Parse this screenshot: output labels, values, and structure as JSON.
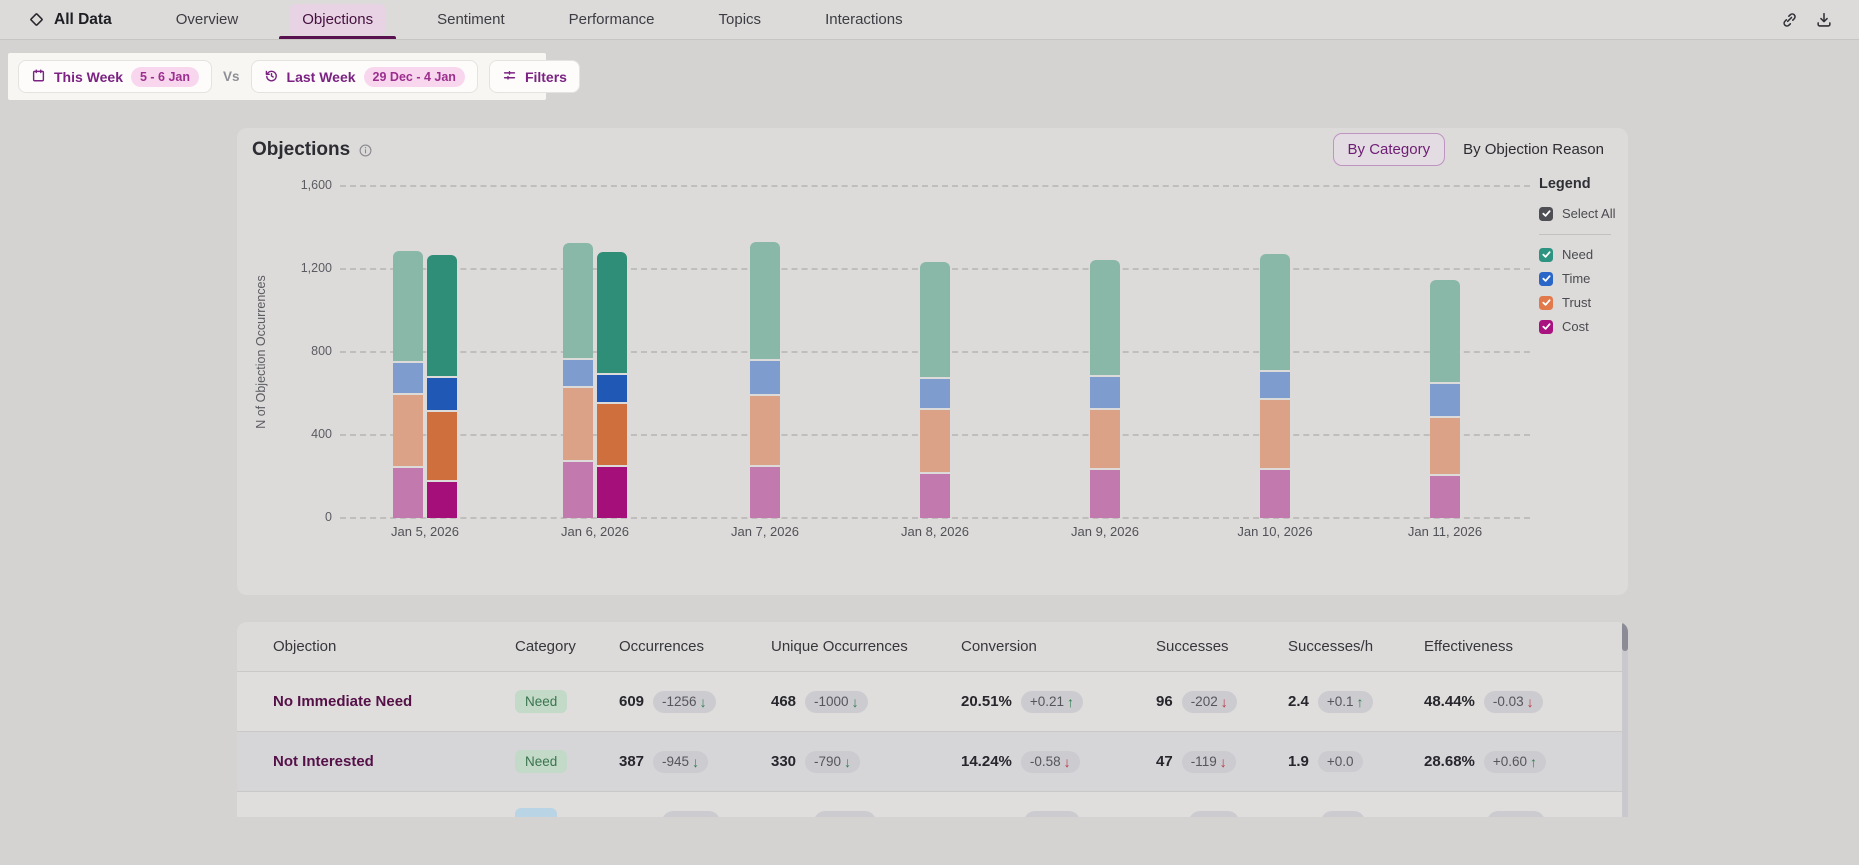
{
  "colors": {
    "accent_purple": "#7b2282",
    "tab_underline": "#5a1150",
    "delta_good": "#2e7d4f",
    "delta_bad": "#b9363f",
    "category_need_bg": "#c2dac7",
    "category_need_text": "#3a744e",
    "badge_bg": "#cccbd0",
    "badge_text": "#55555c",
    "objection_link": "#551048",
    "partial_category_bg": "#b9d4e4"
  },
  "nav": {
    "brand": "All Data",
    "tabs": [
      {
        "label": "Overview",
        "active": false
      },
      {
        "label": "Objections",
        "active": true
      },
      {
        "label": "Sentiment",
        "active": false
      },
      {
        "label": "Performance",
        "active": false
      },
      {
        "label": "Topics",
        "active": false
      },
      {
        "label": "Interactions",
        "active": false
      }
    ]
  },
  "filters": {
    "this_week_label": "This Week",
    "this_week_range": "5 - 6 Jan",
    "vs_label": "Vs",
    "last_week_label": "Last Week",
    "last_week_range": "29 Dec - 4 Jan",
    "filters_label": "Filters"
  },
  "chart_card": {
    "title": "Objections",
    "toggle_by_category": "By Category",
    "toggle_by_reason": "By Objection Reason",
    "legend": {
      "title": "Legend",
      "select_all_label": "Select All",
      "select_all_color": "#4e4e55",
      "items": [
        {
          "label": "Need",
          "color": "#2d9482",
          "checked": true
        },
        {
          "label": "Time",
          "color": "#2a65c8",
          "checked": true
        },
        {
          "label": "Trust",
          "color": "#e2794a",
          "checked": true
        },
        {
          "label": "Cost",
          "color": "#a9137f",
          "checked": true
        }
      ]
    }
  },
  "chart_data": {
    "type": "bar",
    "stacked": true,
    "title": "Objections",
    "ylabel": "N of Objection Occurrences",
    "ylim": [
      0,
      1600
    ],
    "ytick_values": [
      0,
      400,
      800,
      1200,
      1600
    ],
    "ytick_labels": [
      "0",
      "400",
      "800",
      "1,200",
      "1,600"
    ],
    "grid": "dashed-horizontal",
    "legend_position": "right",
    "categories": [
      "Jan 5, 2026",
      "Jan 6, 2026",
      "Jan 7, 2026",
      "Jan 8, 2026",
      "Jan 9, 2026",
      "Jan 10, 2026",
      "Jan 11, 2026"
    ],
    "stack_order_bottom_to_top": [
      "Cost",
      "Trust",
      "Time",
      "Need"
    ],
    "series": [
      {
        "name": "Last Week (comparison)",
        "style": "muted",
        "palette": {
          "Need": "#8ab8a8",
          "Time": "#7e9ccd",
          "Trust": "#dca287",
          "Cost": "#c27aae"
        },
        "values": {
          "Cost": [
            251,
            282,
            256,
            223,
            239,
            239,
            210
          ],
          "Trust": [
            351,
            352,
            340,
            309,
            293,
            339,
            280
          ],
          "Time": [
            153,
            138,
            170,
            147,
            155,
            133,
            165
          ],
          "Need": [
            540,
            561,
            574,
            565,
            565,
            573,
            502
          ]
        }
      },
      {
        "name": "This Week (current)",
        "style": "solid",
        "palette": {
          "Need": "#2e8e77",
          "Time": "#2059b5",
          "Trust": "#d06f3e",
          "Cost": "#a50f7a"
        },
        "values": {
          "Cost": [
            183,
            255,
            null,
            null,
            null,
            null,
            null
          ],
          "Trust": [
            338,
            306,
            null,
            null,
            null,
            null,
            null
          ],
          "Time": [
            162,
            139,
            null,
            null,
            null,
            null,
            null
          ],
          "Need": [
            596,
            593,
            null,
            null,
            null,
            null,
            null
          ]
        }
      }
    ]
  },
  "table": {
    "columns": [
      "Objection",
      "Category",
      "Occurrences",
      "Unique Occurrences",
      "Conversion",
      "Successes",
      "Successes/h",
      "Effectiveness"
    ],
    "rows": [
      {
        "objection": "No Immediate Need",
        "category": "Need",
        "metrics": [
          {
            "value": "609",
            "delta": "-1256",
            "dir": "down",
            "tone": "good"
          },
          {
            "value": "468",
            "delta": "-1000",
            "dir": "down",
            "tone": "good"
          },
          {
            "value": "20.51%",
            "delta": "+0.21",
            "dir": "up",
            "tone": "good"
          },
          {
            "value": "96",
            "delta": "-202",
            "dir": "down",
            "tone": "bad"
          },
          {
            "value": "2.4",
            "delta": "+0.1",
            "dir": "up",
            "tone": "good"
          },
          {
            "value": "48.44%",
            "delta": "-0.03",
            "dir": "down",
            "tone": "bad"
          }
        ]
      },
      {
        "objection": "Not Interested",
        "category": "Need",
        "metrics": [
          {
            "value": "387",
            "delta": "-945",
            "dir": "down",
            "tone": "good"
          },
          {
            "value": "330",
            "delta": "-790",
            "dir": "down",
            "tone": "good"
          },
          {
            "value": "14.24%",
            "delta": "-0.58",
            "dir": "down",
            "tone": "bad"
          },
          {
            "value": "47",
            "delta": "-119",
            "dir": "down",
            "tone": "bad"
          },
          {
            "value": "1.9",
            "delta": "+0.0",
            "dir": "none",
            "tone": "neutral"
          },
          {
            "value": "28.68%",
            "delta": "+0.60",
            "dir": "up",
            "tone": "good"
          }
        ]
      }
    ],
    "partial_row_visible": true
  }
}
